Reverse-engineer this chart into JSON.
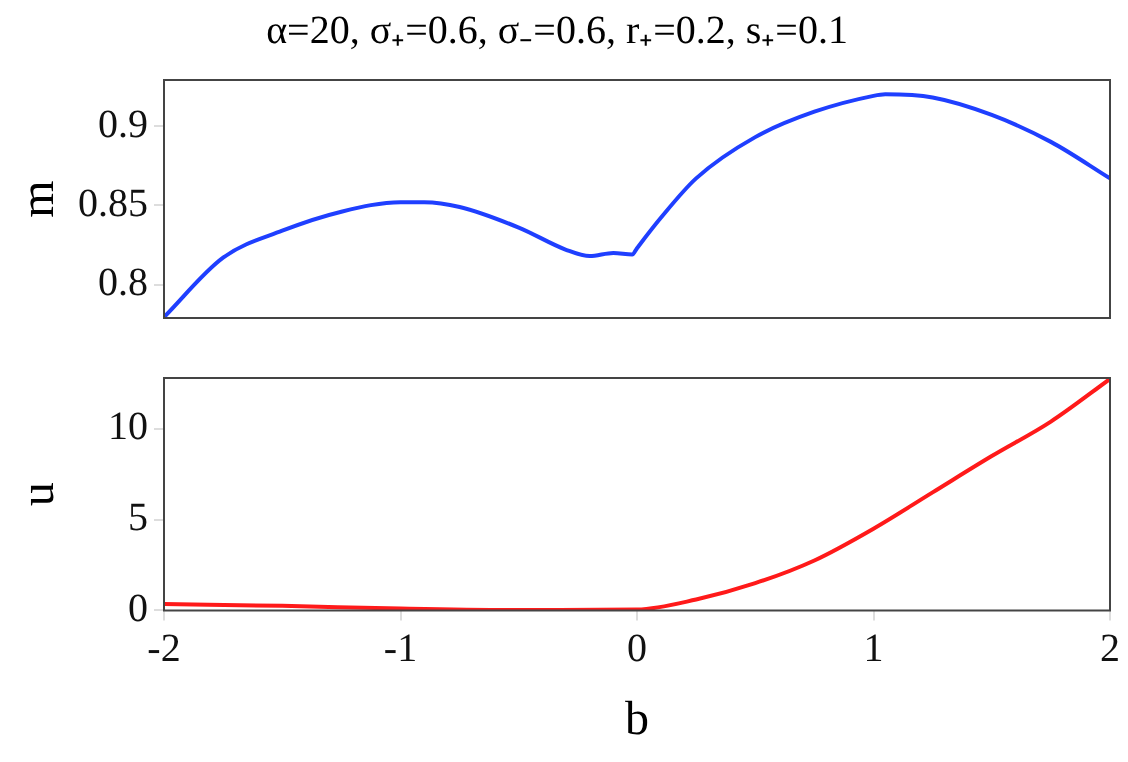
{
  "chart_data": [
    {
      "type": "line",
      "title": "α=20, σ₊=0.6, σ₋=0.6, r₊=0.2, s₊=0.1",
      "ylabel": "m",
      "xlim": [
        -2,
        2
      ],
      "xticks": [
        -2,
        -1,
        0,
        1,
        2
      ],
      "ylim": [
        0.779,
        0.929
      ],
      "yticks": [
        0.8,
        0.85,
        0.9
      ],
      "tick_labels": "y",
      "grid": false,
      "legend": false,
      "x": [
        -2,
        -1.75,
        -1.5,
        -1.25,
        -1,
        -0.9,
        -0.75,
        -0.5,
        -0.3,
        -0.2,
        -0.1,
        -0.02,
        0,
        0.1,
        0.25,
        0.5,
        0.75,
        1,
        1.05,
        1.25,
        1.5,
        1.75,
        2
      ],
      "series": [
        {
          "color": "#1f3fff",
          "values": [
            0.7795,
            0.817,
            0.834,
            0.846,
            0.852,
            0.852,
            0.849,
            0.836,
            0.822,
            0.818,
            0.82,
            0.819,
            0.823,
            0.842,
            0.867,
            0.893,
            0.909,
            0.919,
            0.92,
            0.918,
            0.907,
            0.89,
            0.867
          ]
        }
      ]
    },
    {
      "type": "line",
      "xlabel": "b",
      "ylabel": "u",
      "xlim": [
        -2,
        2
      ],
      "xticks": [
        -2,
        -1,
        0,
        1,
        2
      ],
      "ylim": [
        0,
        12.8
      ],
      "yticks": [
        0,
        5,
        10
      ],
      "grid": false,
      "legend": false,
      "x": [
        -2,
        -1.5,
        -1,
        -0.5,
        0,
        0.25,
        0.5,
        0.75,
        1,
        1.25,
        1.5,
        1.75,
        2
      ],
      "series": [
        {
          "color": "#ff1a1a",
          "values": [
            0.35,
            0.25,
            0.1,
            0.02,
            0.05,
            0.6,
            1.5,
            2.75,
            4.5,
            6.5,
            8.5,
            10.4,
            12.75
          ]
        }
      ]
    }
  ]
}
